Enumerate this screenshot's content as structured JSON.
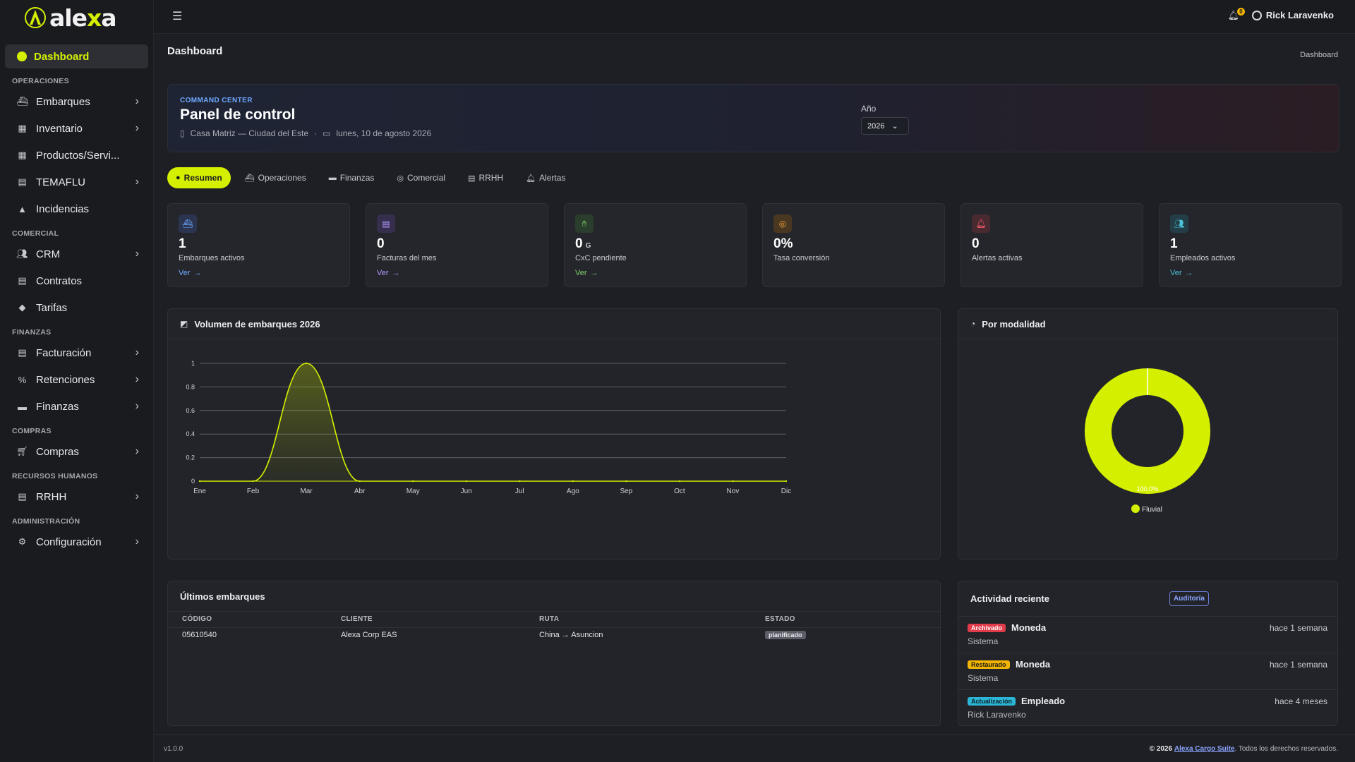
{
  "app": {
    "logo_prefix": "ale",
    "logo_accent": "x",
    "logo_suffix": "a"
  },
  "sidebar": {
    "active": {
      "label": "Dashboard"
    },
    "sections": [
      {
        "title": "OPERACIONES",
        "items": [
          {
            "label": "Embarques",
            "icon": "ship-icon",
            "chevron": true
          },
          {
            "label": "Inventario",
            "icon": "boxes-icon",
            "chevron": true
          },
          {
            "label": "Productos/Servi...",
            "icon": "boxes-icon",
            "chevron": false
          },
          {
            "label": "TEMAFLU",
            "icon": "id-badge-icon",
            "chevron": true
          },
          {
            "label": "Incidencias",
            "icon": "warning-icon",
            "chevron": false
          }
        ]
      },
      {
        "title": "COMERCIAL",
        "items": [
          {
            "label": "CRM",
            "icon": "users-icon",
            "chevron": true
          },
          {
            "label": "Contratos",
            "icon": "contract-icon",
            "chevron": false
          },
          {
            "label": "Tarifas",
            "icon": "tag-icon",
            "chevron": false
          }
        ]
      },
      {
        "title": "FINANZAS",
        "items": [
          {
            "label": "Facturación",
            "icon": "invoice-icon",
            "chevron": true
          },
          {
            "label": "Retenciones",
            "icon": "percent-icon",
            "chevron": true
          },
          {
            "label": "Finanzas",
            "icon": "wallet-icon",
            "chevron": true
          }
        ]
      },
      {
        "title": "COMPRAS",
        "items": [
          {
            "label": "Compras",
            "icon": "cart-icon",
            "chevron": true
          }
        ]
      },
      {
        "title": "RECURSOS HUMANOS",
        "items": [
          {
            "label": "RRHH",
            "icon": "id-badge-icon",
            "chevron": true
          }
        ]
      },
      {
        "title": "ADMINISTRACIÓN",
        "items": [
          {
            "label": "Configuración",
            "icon": "gears-icon",
            "chevron": true
          }
        ]
      }
    ]
  },
  "topbar": {
    "notifications": "0",
    "user": "Rick Laravenko"
  },
  "page": {
    "title": "Dashboard",
    "breadcrumb": "Dashboard"
  },
  "hero": {
    "kicker": "COMMAND CENTER",
    "title": "Panel de control",
    "branch": "Casa Matriz — Ciudad del Este",
    "date": "lunes, 10 de agosto 2026",
    "year_label": "Año",
    "year_value": "2026"
  },
  "tabs": [
    {
      "label": "Resumen",
      "active": true
    },
    {
      "label": "Operaciones",
      "active": false
    },
    {
      "label": "Finanzas",
      "active": false
    },
    {
      "label": "Comercial",
      "active": false
    },
    {
      "label": "RRHH",
      "active": false
    },
    {
      "label": "Alertas",
      "active": false
    }
  ],
  "kpis": [
    {
      "value": "1",
      "unit": "",
      "label": "Embarques activos",
      "link": "Ver",
      "icon": "ship-icon",
      "color": "#6ea8ff",
      "bg": "#2b3550"
    },
    {
      "value": "0",
      "unit": "",
      "label": "Facturas del mes",
      "link": "Ver",
      "icon": "invoice-icon",
      "color": "#b69cff",
      "bg": "#352e4d"
    },
    {
      "value": "0",
      "unit": "G",
      "label": "CxC pendiente",
      "link": "Ver",
      "icon": "hand-money-icon",
      "color": "#7fd36e",
      "bg": "#2b3d2c"
    },
    {
      "value": "0%",
      "unit": "",
      "label": "Tasa conversión",
      "link": "",
      "icon": "target-icon",
      "color": "#f0a33a",
      "bg": "#4a3722"
    },
    {
      "value": "0",
      "unit": "",
      "label": "Alertas activas",
      "link": "",
      "icon": "bell-icon",
      "color": "#ff5d6e",
      "bg": "#4a2a31"
    },
    {
      "value": "1",
      "unit": "",
      "label": "Empleados activos",
      "link": "Ver",
      "icon": "users-icon",
      "color": "#4cc3d9",
      "bg": "#233e47"
    }
  ],
  "volume_card": {
    "title": "Volumen de embarques 2026"
  },
  "modal_card": {
    "title": "Por modalidad"
  },
  "chart_data": [
    {
      "type": "area",
      "title": "Volumen de embarques 2026",
      "x": [
        "Ene",
        "Feb",
        "Mar",
        "Abr",
        "May",
        "Jun",
        "Jul",
        "Ago",
        "Sep",
        "Oct",
        "Nov",
        "Dic"
      ],
      "series": [
        {
          "values": [
            0,
            0,
            1,
            0,
            0,
            0,
            0,
            0,
            0,
            0,
            0,
            0
          ],
          "color": "#d4f000"
        }
      ],
      "ylim": [
        0,
        1
      ],
      "yticks": [
        "0",
        "0.2",
        "0.4",
        "0.6",
        "0.8",
        "1"
      ],
      "grid": true
    },
    {
      "type": "pie",
      "title": "Por modalidad",
      "labels": [
        "Fluvial"
      ],
      "values": [
        100
      ],
      "value_label": "100.0%",
      "colors": [
        "#d4f000"
      ],
      "legend": "bottom"
    }
  ],
  "shipments": {
    "title": "Últimos embarques",
    "columns": [
      "CÓDIGO",
      "CLIENTE",
      "RUTA",
      "ESTADO"
    ],
    "rows": [
      {
        "code": "05610540",
        "client": "Alexa Corp EAS",
        "route": "China → Asuncion",
        "status": "planificado"
      }
    ]
  },
  "activity": {
    "title": "Actividad reciente",
    "audit_button": "Auditoría",
    "items": [
      {
        "badge": "Archivado",
        "badge_bg": "#e23b4a",
        "badge_fg": "#ffffff",
        "entity": "Moneda",
        "who": "Sistema",
        "when": "hace 1 semana"
      },
      {
        "badge": "Restaurado",
        "badge_bg": "#f1b400",
        "badge_fg": "#1a1b1f",
        "entity": "Moneda",
        "who": "Sistema",
        "when": "hace 1 semana"
      },
      {
        "badge": "Actualización",
        "badge_bg": "#2bb6d6",
        "badge_fg": "#102026",
        "entity": "Empleado",
        "who": "Rick Laravenko",
        "when": "hace 4 meses"
      }
    ]
  },
  "footer": {
    "version": "v1.0.0",
    "copy_prefix": "© 2026",
    "copy_link": "Alexa Cargo Suite",
    "copy_suffix": ". Todos los derechos reservados."
  }
}
